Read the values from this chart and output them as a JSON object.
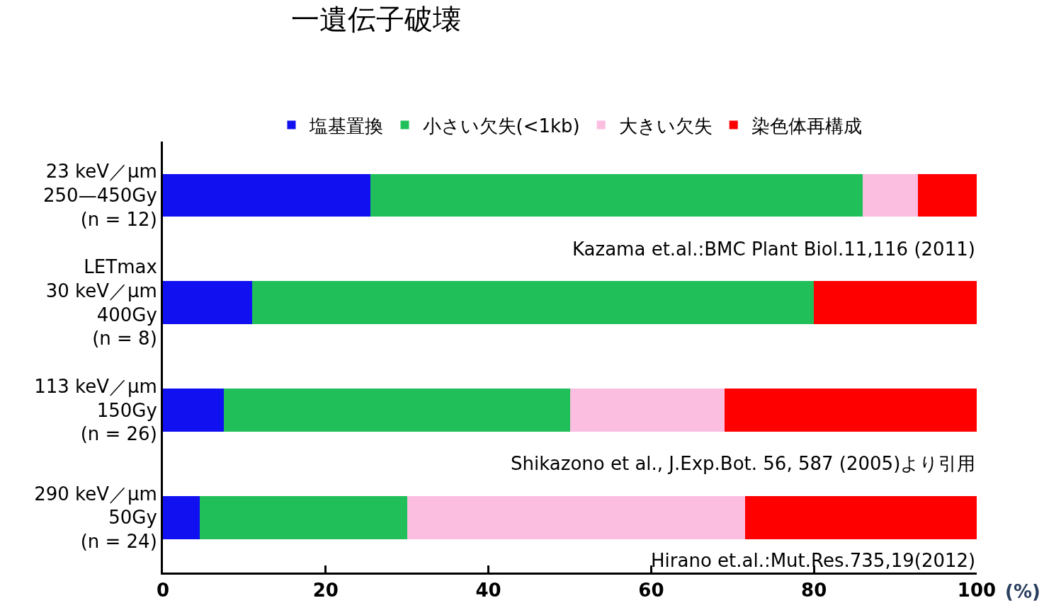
{
  "chart_data": {
    "type": "bar",
    "orientation": "horizontal",
    "stacked": true,
    "title": "一遺伝子破壊",
    "xlabel": "(%)",
    "categories": [
      "23 keV／μm\n250—450Gy\n(n = 12)",
      "LETmax\n30 keV／μm\n400Gy\n(n = 8)",
      "113 keV／μm\n150Gy\n(n = 26)",
      "290 keV／μm\n50Gy\n(n = 24)"
    ],
    "series": [
      {
        "name": "塩基置換",
        "color": "#1010f0",
        "values": [
          25.5,
          11,
          7.5,
          4.5
        ]
      },
      {
        "name": "小さい欠失(<1kb)",
        "color": "#20bf5a",
        "values": [
          60.5,
          69,
          42.5,
          25.5
        ]
      },
      {
        "name": "大きい欠失",
        "color": "#fbbde0",
        "values": [
          6.8,
          0,
          19,
          41.5
        ]
      },
      {
        "name": "染色体再構成",
        "color": "#ff0000",
        "values": [
          7.2,
          20,
          31,
          28.5
        ]
      }
    ],
    "xlim": [
      0,
      100
    ],
    "xticks": [
      0,
      20,
      40,
      60,
      80,
      100
    ],
    "legend": "top",
    "annotations": [
      "Kazama et.al.:BMC Plant Biol.11,116 (2011)",
      "Shikazono et al., J.Exp.Bot. 56, 587 (2005)より引用",
      "Hirano et.al.:Mut.Res.735,19(2012)"
    ]
  }
}
